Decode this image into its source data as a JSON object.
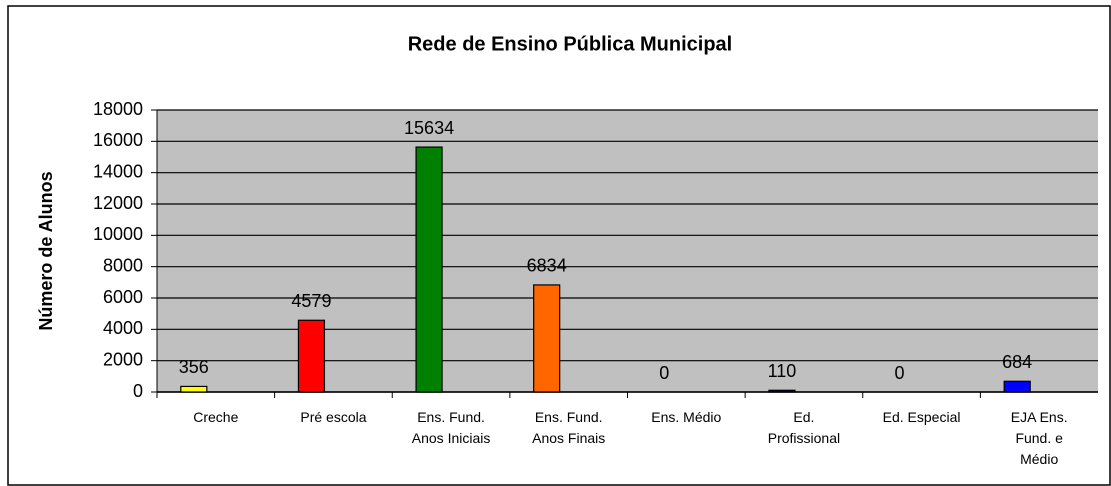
{
  "chart_data": {
    "type": "bar",
    "title": "Rede de Ensino Pública Municipal",
    "y_label": "Número de Alunos",
    "categories": [
      "Creche",
      "Pré escola",
      "Ens. Fund.\nAnos Iniciais",
      "Ens. Fund.\nAnos Finais",
      "Ens. Médio",
      "Ed.\nProfissional",
      "Ed. Especial",
      "EJA Ens.\nFund. e\nMédio"
    ],
    "values": [
      356,
      4579,
      15634,
      6834,
      0,
      110,
      0,
      684
    ],
    "colors": [
      "#ffff00",
      "#ff0000",
      "#008000",
      "#ff6600",
      "#800080",
      "#000080",
      "#00ffff",
      "#0000ff"
    ],
    "ylim": [
      0,
      18000
    ],
    "yticks": [
      0,
      2000,
      4000,
      6000,
      8000,
      10000,
      12000,
      14000,
      16000,
      18000
    ],
    "grid": true
  }
}
